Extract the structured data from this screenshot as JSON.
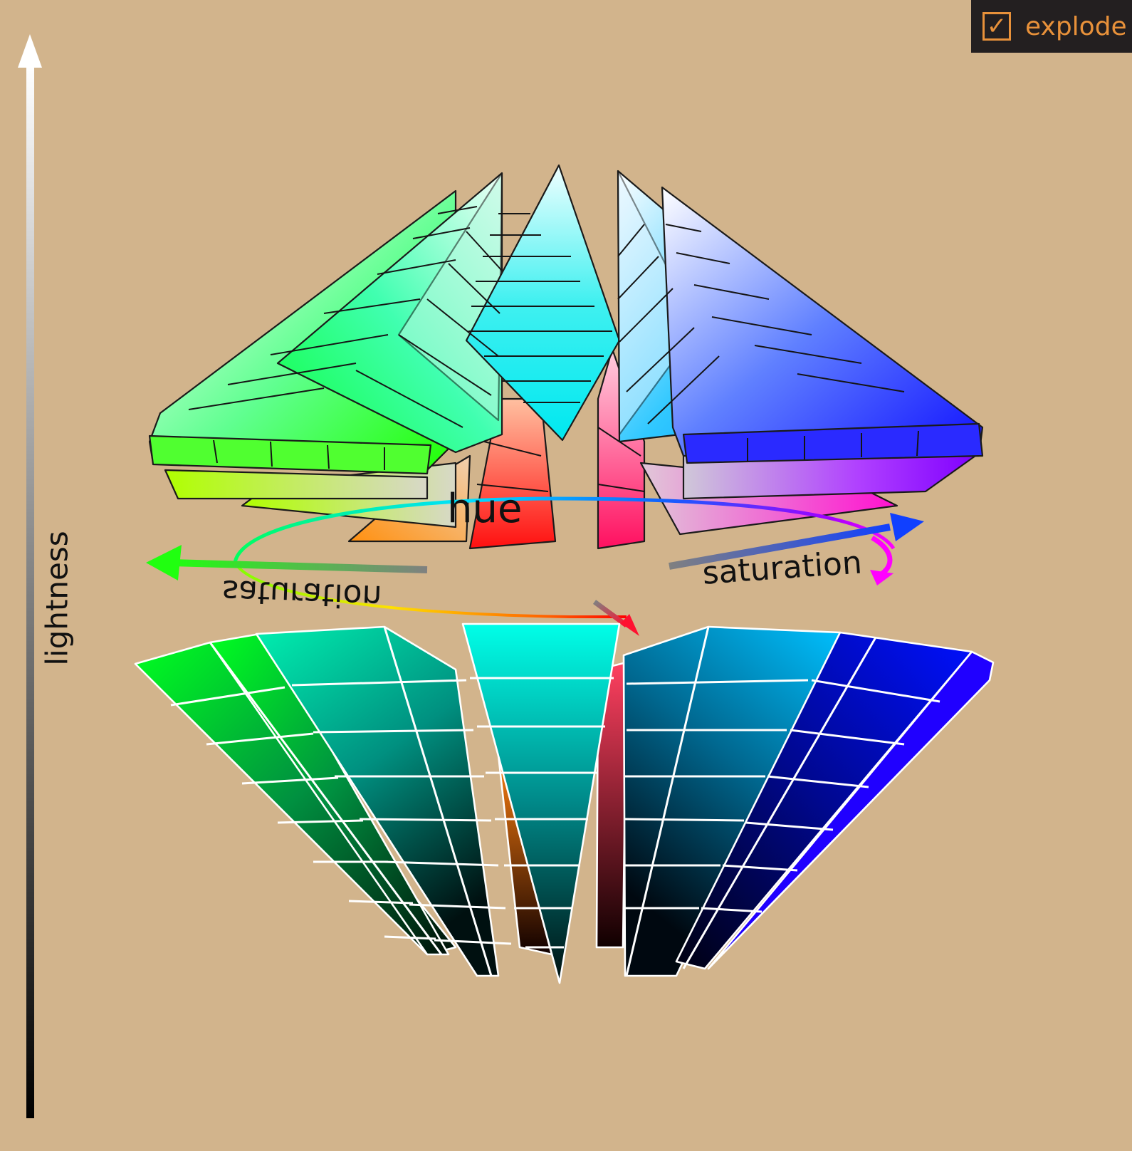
{
  "toggle": {
    "label": "explode",
    "checked": true,
    "check_glyph": "✓"
  },
  "axes": {
    "lightness": "lightness",
    "hue": "hue",
    "saturation_right": "saturation",
    "saturation_left": "saturation"
  },
  "colors": {
    "background": "#d2b48c",
    "toggle_bg": "#231f20",
    "toggle_accent": "#e8913a"
  }
}
